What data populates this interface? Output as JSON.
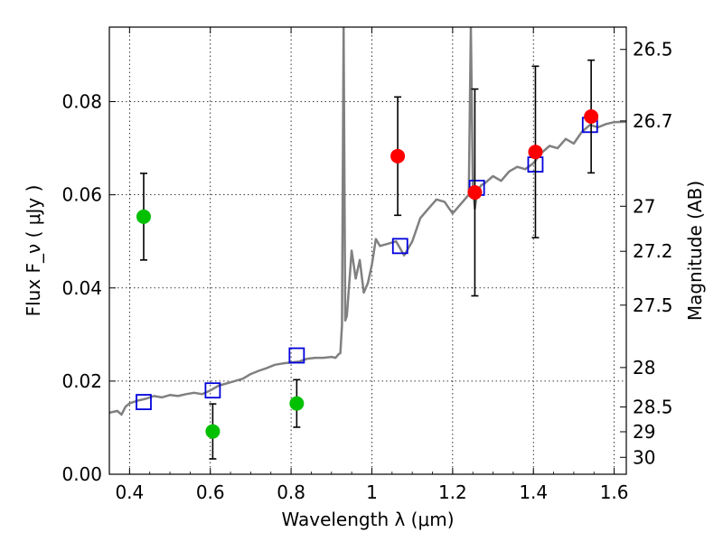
{
  "chart_data": {
    "type": "scatter",
    "xlabel": "Wavelength  λ (μm)",
    "ylabel": "Flux  F_ν  ( μJy )",
    "y2label": "Magnitude (AB)",
    "xlim": [
      0.35,
      1.63
    ],
    "ylim": [
      0.0,
      0.096
    ],
    "grid": true,
    "x_ticks": [
      0.4,
      0.6,
      0.8,
      1.0,
      1.2,
      1.4,
      1.6
    ],
    "x_tick_labels": [
      "0.4",
      "0.6",
      "0.8",
      "1",
      "1.2",
      "1.4",
      "1.6"
    ],
    "y_ticks": [
      0.0,
      0.02,
      0.04,
      0.06,
      0.08
    ],
    "y_tick_labels": [
      "0.00",
      "0.02",
      "0.04",
      "0.06",
      "0.08"
    ],
    "mag_tick_labels": [
      "26.5",
      "26.7",
      "27",
      "27.2",
      "27.5",
      "28",
      "28.5",
      "29",
      "30"
    ],
    "colors": {
      "model": "#808080",
      "green": "#00c000",
      "red": "#ff0000",
      "square": "#0000dd",
      "errorbar": "#000000"
    },
    "series": [
      {
        "kind": "model_spectrum",
        "x": [
          0.35,
          0.37,
          0.38,
          0.39,
          0.4,
          0.42,
          0.44,
          0.46,
          0.48,
          0.5,
          0.52,
          0.54,
          0.56,
          0.58,
          0.6,
          0.62,
          0.64,
          0.66,
          0.68,
          0.7,
          0.72,
          0.74,
          0.76,
          0.78,
          0.8,
          0.82,
          0.84,
          0.86,
          0.88,
          0.9,
          0.91,
          0.918,
          0.922,
          0.926,
          0.93,
          0.934,
          0.938,
          0.95,
          0.96,
          0.97,
          0.98,
          0.99,
          1.0,
          1.01,
          1.02,
          1.04,
          1.06,
          1.08,
          1.1,
          1.12,
          1.14,
          1.16,
          1.18,
          1.2,
          1.22,
          1.24,
          1.245,
          1.25,
          1.255,
          1.26,
          1.27,
          1.28,
          1.3,
          1.32,
          1.34,
          1.36,
          1.38,
          1.4,
          1.42,
          1.44,
          1.46,
          1.48,
          1.5,
          1.52,
          1.54,
          1.56,
          1.58,
          1.6,
          1.63
        ],
        "y": [
          0.0132,
          0.0136,
          0.0128,
          0.0145,
          0.0152,
          0.0158,
          0.0162,
          0.0168,
          0.0165,
          0.017,
          0.0168,
          0.0172,
          0.0175,
          0.0172,
          0.018,
          0.019,
          0.0195,
          0.02,
          0.0205,
          0.0215,
          0.0222,
          0.0228,
          0.0235,
          0.0238,
          0.024,
          0.0242,
          0.0248,
          0.025,
          0.025,
          0.0252,
          0.025,
          0.0258,
          0.026,
          0.032,
          0.096,
          0.033,
          0.034,
          0.048,
          0.042,
          0.046,
          0.039,
          0.041,
          0.045,
          0.0505,
          0.049,
          0.0495,
          0.05,
          0.047,
          0.05,
          0.055,
          0.057,
          0.059,
          0.0585,
          0.056,
          0.058,
          0.06,
          0.096,
          0.062,
          0.057,
          0.06,
          0.062,
          0.0625,
          0.064,
          0.063,
          0.065,
          0.066,
          0.0655,
          0.0668,
          0.069,
          0.0705,
          0.07,
          0.072,
          0.071,
          0.0735,
          0.075,
          0.0745,
          0.0752,
          0.0756,
          0.0757
        ]
      },
      {
        "kind": "model_photometry",
        "marker": "square",
        "x": [
          0.435,
          0.606,
          0.814,
          1.07,
          1.26,
          1.405,
          1.54
        ],
        "y": [
          0.0155,
          0.018,
          0.0255,
          0.049,
          0.0615,
          0.0665,
          0.075
        ]
      },
      {
        "kind": "observed_green",
        "marker": "circle",
        "x": [
          0.435,
          0.606,
          0.814
        ],
        "y": [
          0.0553,
          0.0092,
          0.0152
        ],
        "yerr": [
          0.0093,
          0.0059,
          0.0051
        ]
      },
      {
        "kind": "observed_red",
        "marker": "circle",
        "x": [
          1.064,
          1.255,
          1.405,
          1.543
        ],
        "y": [
          0.0683,
          0.0605,
          0.0692,
          0.0768
        ],
        "yerr": [
          0.0127,
          0.0222,
          0.0184,
          0.0121
        ]
      }
    ]
  }
}
